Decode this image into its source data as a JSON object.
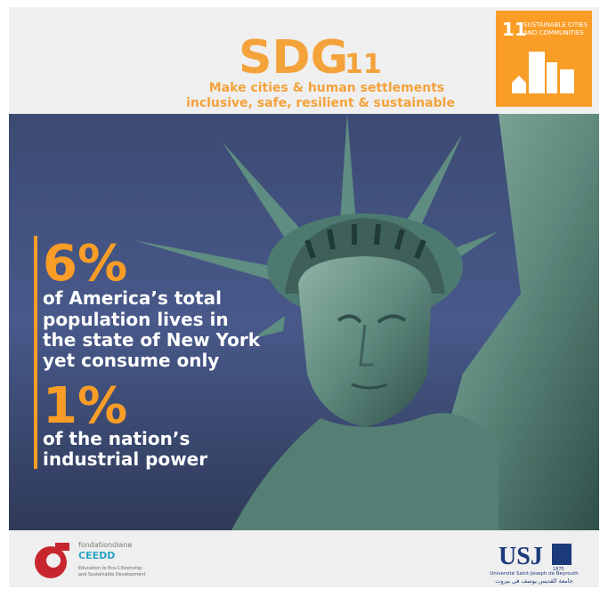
{
  "header": {
    "title": "SDG",
    "number": "11",
    "subtitle": [
      "Make cities & human settlements",
      "inclusive, safe, resilient & sustainable"
    ]
  },
  "badge": {
    "number": "11",
    "label": [
      "SUSTAINABLE CITIES",
      "AND COMMUNITIES"
    ]
  },
  "facts": [
    {
      "stat": "6%",
      "lines": [
        "of America’s total",
        "population lives in",
        "the state of New York",
        "yet consume only"
      ]
    },
    {
      "stat": "1%",
      "lines": [
        "of the nation’s",
        "industrial power"
      ]
    }
  ],
  "footer": {
    "left": {
      "name": "fondationdiane",
      "brand": "CEEDD",
      "tagline": [
        "Education to Eco-Citizenship",
        "and Sustainable Development"
      ]
    },
    "right": {
      "name": "USJ",
      "year": "1875",
      "full_name": "Université Saint-Joseph de Beyrouth",
      "arabic_name": "جامعة القديس يوسف في بيروت"
    }
  }
}
